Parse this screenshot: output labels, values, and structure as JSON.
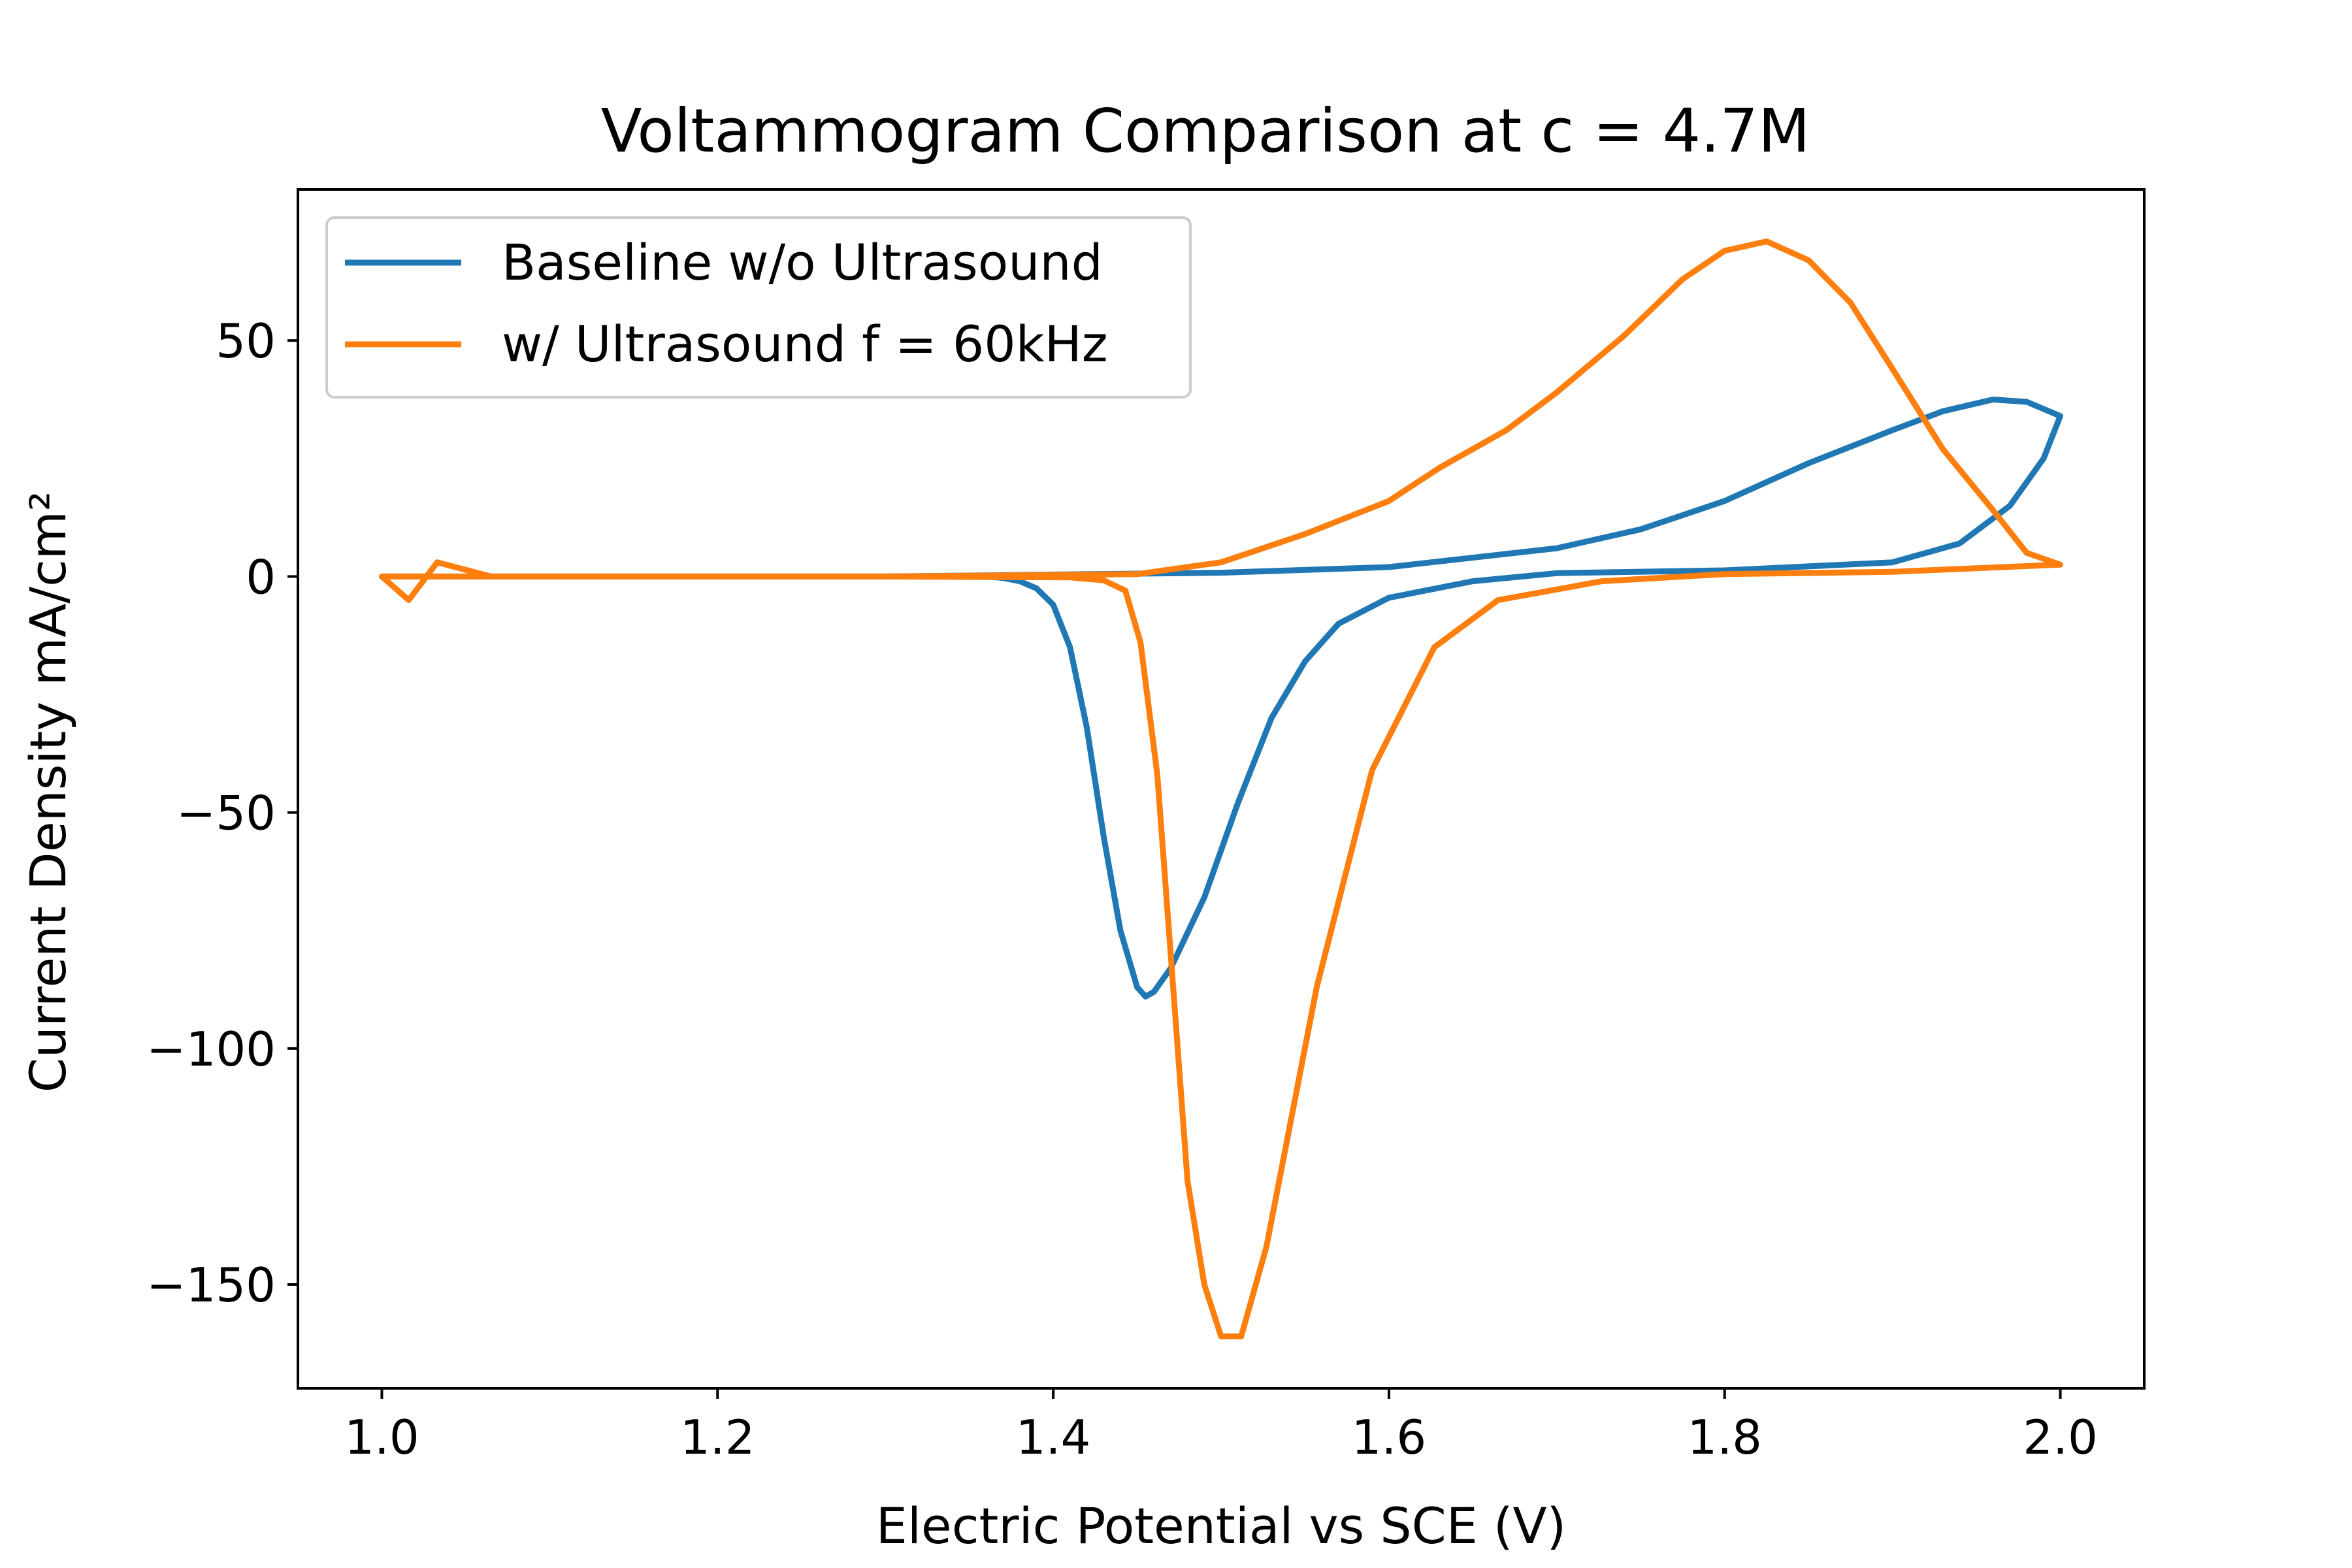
{
  "chart_data": {
    "type": "line",
    "title": "Voltammogram Comparison at c = 4.7M",
    "xlabel": "Electric Potential vs SCE (V)",
    "ylabel": "Current Density mA/cm²",
    "xlim": [
      0.95,
      2.05
    ],
    "ylim": [
      -172,
      82
    ],
    "xticks": [
      {
        "value": 1.0,
        "label": "1.0"
      },
      {
        "value": 1.2,
        "label": "1.2"
      },
      {
        "value": 1.4,
        "label": "1.4"
      },
      {
        "value": 1.6,
        "label": "1.6"
      },
      {
        "value": 1.8,
        "label": "1.8"
      },
      {
        "value": 2.0,
        "label": "2.0"
      }
    ],
    "yticks": [
      {
        "value": 50,
        "label": "50"
      },
      {
        "value": 0,
        "label": "0"
      },
      {
        "value": -50,
        "label": "−50"
      },
      {
        "value": -100,
        "label": "−100"
      },
      {
        "value": -150,
        "label": "−150"
      }
    ],
    "grid": false,
    "legend_position": "top-left",
    "series": [
      {
        "name": "Baseline w/o Ultrasound",
        "color": "#1f77b4",
        "x": [
          1.0,
          1.3,
          1.5,
          1.6,
          1.7,
          1.75,
          1.8,
          1.85,
          1.9,
          1.93,
          1.96,
          1.98,
          2.0,
          1.99,
          1.97,
          1.94,
          1.9,
          1.8,
          1.7,
          1.65,
          1.6,
          1.57,
          1.55,
          1.53,
          1.51,
          1.49,
          1.47,
          1.46,
          1.455,
          1.45,
          1.44,
          1.43,
          1.42,
          1.41,
          1.4,
          1.39,
          1.38,
          1.37,
          1.36,
          1.2,
          1.01,
          1.0
        ],
        "y": [
          0,
          0,
          0.8,
          2,
          6,
          10,
          16,
          24,
          31,
          35,
          37.5,
          37,
          34,
          25,
          15,
          7,
          3,
          1.3,
          0.7,
          -1,
          -4.5,
          -10,
          -18,
          -30,
          -48,
          -68,
          -83,
          -88,
          -89,
          -87,
          -75,
          -55,
          -32,
          -15,
          -6,
          -2.5,
          -1,
          -0.3,
          0,
          0,
          0,
          0
        ]
      },
      {
        "name": "w/ Ultrasound f = 60kHz",
        "color": "#ff7f0e",
        "x": [
          1.0,
          1.016,
          1.033,
          1.065,
          1.3,
          1.45,
          1.5,
          1.55,
          1.6,
          1.63,
          1.67,
          1.7,
          1.74,
          1.775,
          1.8,
          1.825,
          1.85,
          1.875,
          1.9,
          1.93,
          1.96,
          1.98,
          2.0,
          1.9,
          1.8,
          1.727,
          1.665,
          1.627,
          1.59,
          1.557,
          1.527,
          1.512,
          1.5,
          1.49,
          1.48,
          1.47,
          1.462,
          1.452,
          1.443,
          1.43,
          1.41,
          1.3,
          1.0
        ],
        "y": [
          0,
          -5,
          3,
          0,
          0,
          0.5,
          3,
          9,
          16,
          23,
          31,
          39,
          51,
          63,
          69,
          71,
          67,
          58,
          44,
          27,
          14,
          5,
          2.5,
          1,
          0.5,
          -1,
          -5,
          -15,
          -41,
          -87,
          -142,
          -161,
          -161,
          -150,
          -128,
          -80,
          -42,
          -14,
          -3,
          -0.8,
          -0.2,
          0,
          0
        ]
      }
    ]
  }
}
